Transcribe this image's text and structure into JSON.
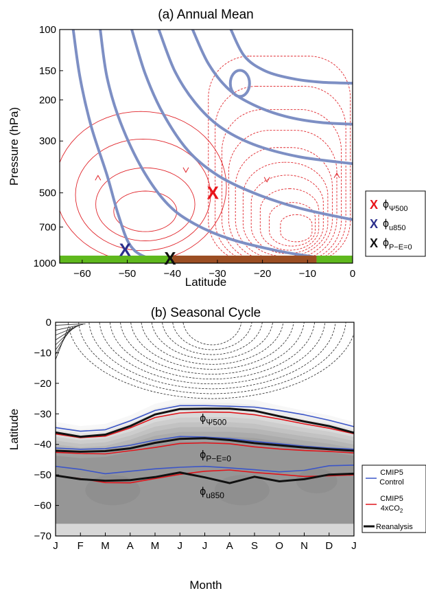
{
  "figure": {
    "panel_a_title": "(a) Annual Mean",
    "panel_b_title": "(b) Seasonal Cycle"
  },
  "chart_data": [
    {
      "type": "contour",
      "title": "(a) Annual Mean",
      "xlabel": "Latitude",
      "ylabel": "Pressure (hPa)",
      "xlim": [
        -65,
        0
      ],
      "ylim": [
        1000,
        100
      ],
      "yscale": "log",
      "x_ticks": [
        -60,
        -50,
        -40,
        -30,
        -20,
        -10,
        0
      ],
      "y_ticks": [
        100,
        150,
        200,
        300,
        500,
        700,
        1000
      ],
      "markers": [
        {
          "label": "X",
          "color": "#e8141a",
          "lat": -31,
          "p": 500,
          "legend_main": "ϕ",
          "legend_sub": "Ψ500"
        },
        {
          "label": "X",
          "color": "#2b2f8c",
          "lat": -50.5,
          "p": 875,
          "legend_main": "ϕ",
          "legend_sub": "u850"
        },
        {
          "label": "X",
          "color": "#111111",
          "lat": -40.5,
          "p": 955,
          "legend_main": "ϕ",
          "legend_sub": "P−E=0"
        }
      ],
      "surface_bar": [
        {
          "from": -65,
          "to": -40,
          "color": "#5fb81d"
        },
        {
          "from": -40,
          "to": -8,
          "color": "#9b4e23"
        },
        {
          "from": -8,
          "to": 0,
          "color": "#5fb81d"
        }
      ],
      "colors": {
        "jet": "#7d8fc4",
        "streamfunction": "#e0242a"
      }
    },
    {
      "type": "line",
      "title": "(b) Seasonal Cycle",
      "xlabel": "Month",
      "ylabel": "Latitude",
      "categories": [
        "J",
        "F",
        "M",
        "A",
        "M",
        "J",
        "J",
        "A",
        "S",
        "O",
        "N",
        "D",
        "J"
      ],
      "ylim": [
        -70,
        0
      ],
      "y_ticks": [
        0,
        -10,
        -20,
        -30,
        -40,
        -50,
        -60,
        -70
      ],
      "annotations": [
        {
          "main": "ϕ",
          "sub": "Ψ500",
          "month": 5.8,
          "lat": -32.5
        },
        {
          "main": "ϕ",
          "sub": "P−E=0",
          "month": 5.8,
          "lat": -44.5
        },
        {
          "main": "ϕ",
          "sub": "u850",
          "month": 5.8,
          "lat": -56.5
        }
      ],
      "legend": [
        {
          "line1": "CMIP5",
          "line2": "Control",
          "line2_sub": "",
          "color": "#3b55c8",
          "width": 1.5
        },
        {
          "line1": "CMIP5",
          "line2": "4xCO",
          "line2_sub": "2",
          "color": "#e0141a",
          "width": 1.5
        },
        {
          "line1": "Reanalysis",
          "line2": "",
          "line2_sub": "",
          "color": "#111111",
          "width": 3
        }
      ],
      "series": [
        {
          "name": "CMIP5 Control",
          "metric": "psi500",
          "color": "#3b55c8",
          "values": [
            -34.5,
            -35.7,
            -35.2,
            -32.3,
            -28.9,
            -27.3,
            -27.3,
            -27.5,
            -27.8,
            -28.9,
            -30.3,
            -32.1,
            -34.2
          ]
        },
        {
          "name": "CMIP5 4xCO2",
          "metric": "psi500",
          "color": "#e0141a",
          "values": [
            -36.6,
            -37.8,
            -37.3,
            -34.6,
            -31.2,
            -29.7,
            -29.4,
            -29.5,
            -30.3,
            -31.7,
            -33.3,
            -34.7,
            -36.5
          ]
        },
        {
          "name": "Reanalysis",
          "metric": "psi500",
          "color": "#111111",
          "values": [
            -36.1,
            -37.5,
            -36.8,
            -34.0,
            -30.2,
            -28.4,
            -28.3,
            -28.3,
            -29.0,
            -30.8,
            -32.5,
            -34.0,
            -36.2
          ]
        },
        {
          "name": "CMIP5 Control",
          "metric": "pe0",
          "color": "#3b55c8",
          "values": [
            -41.2,
            -41.6,
            -41.4,
            -40.3,
            -38.6,
            -37.4,
            -37.6,
            -38.1,
            -39.0,
            -39.8,
            -40.6,
            -41.2,
            -41.6
          ]
        },
        {
          "name": "CMIP5 4xCO2",
          "metric": "pe0",
          "color": "#e0141a",
          "values": [
            -42.6,
            -43.0,
            -43.1,
            -42.1,
            -41.0,
            -39.7,
            -39.5,
            -39.8,
            -40.8,
            -41.5,
            -42.0,
            -42.3,
            -42.8
          ]
        },
        {
          "name": "Reanalysis",
          "metric": "pe0",
          "color": "#111111",
          "values": [
            -42.1,
            -42.4,
            -42.2,
            -41.3,
            -39.5,
            -38.2,
            -38.0,
            -38.6,
            -39.6,
            -40.3,
            -41.0,
            -41.6,
            -42.1
          ]
        },
        {
          "name": "CMIP5 Control",
          "metric": "u850",
          "color": "#3b55c8",
          "values": [
            -47.2,
            -48.2,
            -49.6,
            -48.8,
            -48.0,
            -47.5,
            -47.2,
            -47.7,
            -48.3,
            -49.0,
            -48.5,
            -47.0,
            -46.8
          ]
        },
        {
          "name": "CMIP5 4xCO2",
          "metric": "u850",
          "color": "#e0141a",
          "values": [
            -50.2,
            -51.2,
            -52.5,
            -52.6,
            -51.2,
            -49.8,
            -48.8,
            -48.4,
            -49.2,
            -49.8,
            -50.5,
            -50.3,
            -50.0
          ]
        },
        {
          "name": "Reanalysis",
          "metric": "u850",
          "color": "#111111",
          "values": [
            -50.2,
            -51.4,
            -51.9,
            -51.7,
            -50.7,
            -49.2,
            -50.8,
            -52.7,
            -50.6,
            -52.1,
            -51.4,
            -49.9,
            -49.6
          ]
        }
      ]
    }
  ]
}
